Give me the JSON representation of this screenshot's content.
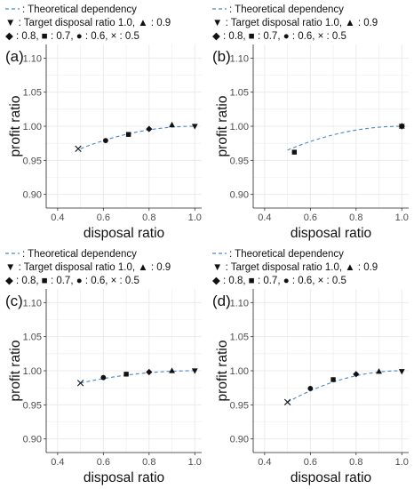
{
  "legend": {
    "line1": "- - : Theoretical dependency",
    "line2": "▼ : Target disposal ratio 1.0, ▲ : 0.9",
    "line3": "◆ : 0.8, ■ : 0.7, ● : 0.6, × : 0.5"
  },
  "colors": {
    "curve": "#4a86c8",
    "grid": "#ebebeb",
    "marker": "#111111"
  },
  "chart_data": [
    {
      "type": "scatter",
      "panel_label": "(a)",
      "xlabel": "disposal ratio",
      "ylabel": "profit ratio",
      "xlim": [
        0.35,
        1.03
      ],
      "ylim": [
        0.88,
        1.12
      ],
      "xticks": [
        "0.4",
        "0.6",
        "0.8",
        "1.0"
      ],
      "yticks": [
        "0.90",
        "0.95",
        "1.00",
        "1.05",
        "1.10"
      ],
      "curve": {
        "x_range": [
          0.5,
          1.0
        ],
        "y_at_start": 0.967
      },
      "points": [
        {
          "series": "0.5",
          "marker": "x",
          "x": 0.49,
          "y": 0.967
        },
        {
          "series": "0.6",
          "marker": "circle",
          "x": 0.61,
          "y": 0.979
        },
        {
          "series": "0.7",
          "marker": "square",
          "x": 0.71,
          "y": 0.988
        },
        {
          "series": "0.8",
          "marker": "diamond",
          "x": 0.8,
          "y": 0.996
        },
        {
          "series": "0.9",
          "marker": "triangle-up",
          "x": 0.9,
          "y": 1.002
        },
        {
          "series": "1.0",
          "marker": "triangle-down",
          "x": 1.0,
          "y": 1.0
        }
      ],
      "grid": true
    },
    {
      "type": "scatter",
      "panel_label": "(b)",
      "xlabel": "disposal ratio",
      "ylabel": "profit ratio",
      "xlim": [
        0.35,
        1.03
      ],
      "ylim": [
        0.88,
        1.12
      ],
      "xticks": [
        "0.4",
        "0.6",
        "0.8",
        "1.0"
      ],
      "yticks": [
        "0.90",
        "0.95",
        "1.00",
        "1.05",
        "1.10"
      ],
      "curve": {
        "x_range": [
          0.5,
          1.0
        ],
        "y_at_start": 0.965
      },
      "points": [
        {
          "series": "0.7",
          "marker": "square",
          "x": 0.53,
          "y": 0.962
        },
        {
          "series": "0.8",
          "marker": "diamond",
          "x": 1.0,
          "y": 1.0
        },
        {
          "series": "0.9",
          "marker": "triangle-up",
          "x": 1.0,
          "y": 1.0
        },
        {
          "series": "1.0",
          "marker": "triangle-down",
          "x": 1.0,
          "y": 1.0
        },
        {
          "series": "0.6",
          "marker": "circle",
          "x": 1.0,
          "y": 1.0
        }
      ],
      "grid": true
    },
    {
      "type": "scatter",
      "panel_label": "(c)",
      "xlabel": "disposal ratio",
      "ylabel": "profit ratio",
      "xlim": [
        0.35,
        1.03
      ],
      "ylim": [
        0.88,
        1.12
      ],
      "xticks": [
        "0.4",
        "0.6",
        "0.8",
        "1.0"
      ],
      "yticks": [
        "0.90",
        "0.95",
        "1.00",
        "1.05",
        "1.10"
      ],
      "curve": {
        "x_range": [
          0.5,
          1.0
        ],
        "y_at_start": 0.982
      },
      "points": [
        {
          "series": "0.5",
          "marker": "x",
          "x": 0.5,
          "y": 0.982
        },
        {
          "series": "0.6",
          "marker": "circle",
          "x": 0.6,
          "y": 0.99
        },
        {
          "series": "0.7",
          "marker": "square",
          "x": 0.7,
          "y": 0.995
        },
        {
          "series": "0.8",
          "marker": "diamond",
          "x": 0.8,
          "y": 0.998
        },
        {
          "series": "0.9",
          "marker": "triangle-up",
          "x": 0.9,
          "y": 1.0
        },
        {
          "series": "1.0",
          "marker": "triangle-down",
          "x": 1.0,
          "y": 1.0
        }
      ],
      "grid": true
    },
    {
      "type": "scatter",
      "panel_label": "(d)",
      "xlabel": "disposal ratio",
      "ylabel": "profit ratio",
      "xlim": [
        0.35,
        1.03
      ],
      "ylim": [
        0.88,
        1.12
      ],
      "xticks": [
        "0.4",
        "0.6",
        "0.8",
        "1.0"
      ],
      "yticks": [
        "0.90",
        "0.95",
        "1.00",
        "1.05",
        "1.10"
      ],
      "curve": {
        "x_range": [
          0.5,
          1.0
        ],
        "y_at_start": 0.954
      },
      "points": [
        {
          "series": "0.5",
          "marker": "x",
          "x": 0.5,
          "y": 0.954
        },
        {
          "series": "0.6",
          "marker": "circle",
          "x": 0.6,
          "y": 0.974
        },
        {
          "series": "0.7",
          "marker": "square",
          "x": 0.7,
          "y": 0.987
        },
        {
          "series": "0.8",
          "marker": "diamond",
          "x": 0.8,
          "y": 0.995
        },
        {
          "series": "0.9",
          "marker": "triangle-up",
          "x": 0.9,
          "y": 0.999
        },
        {
          "series": "1.0",
          "marker": "triangle-down",
          "x": 1.0,
          "y": 0.999
        }
      ],
      "grid": true
    }
  ]
}
